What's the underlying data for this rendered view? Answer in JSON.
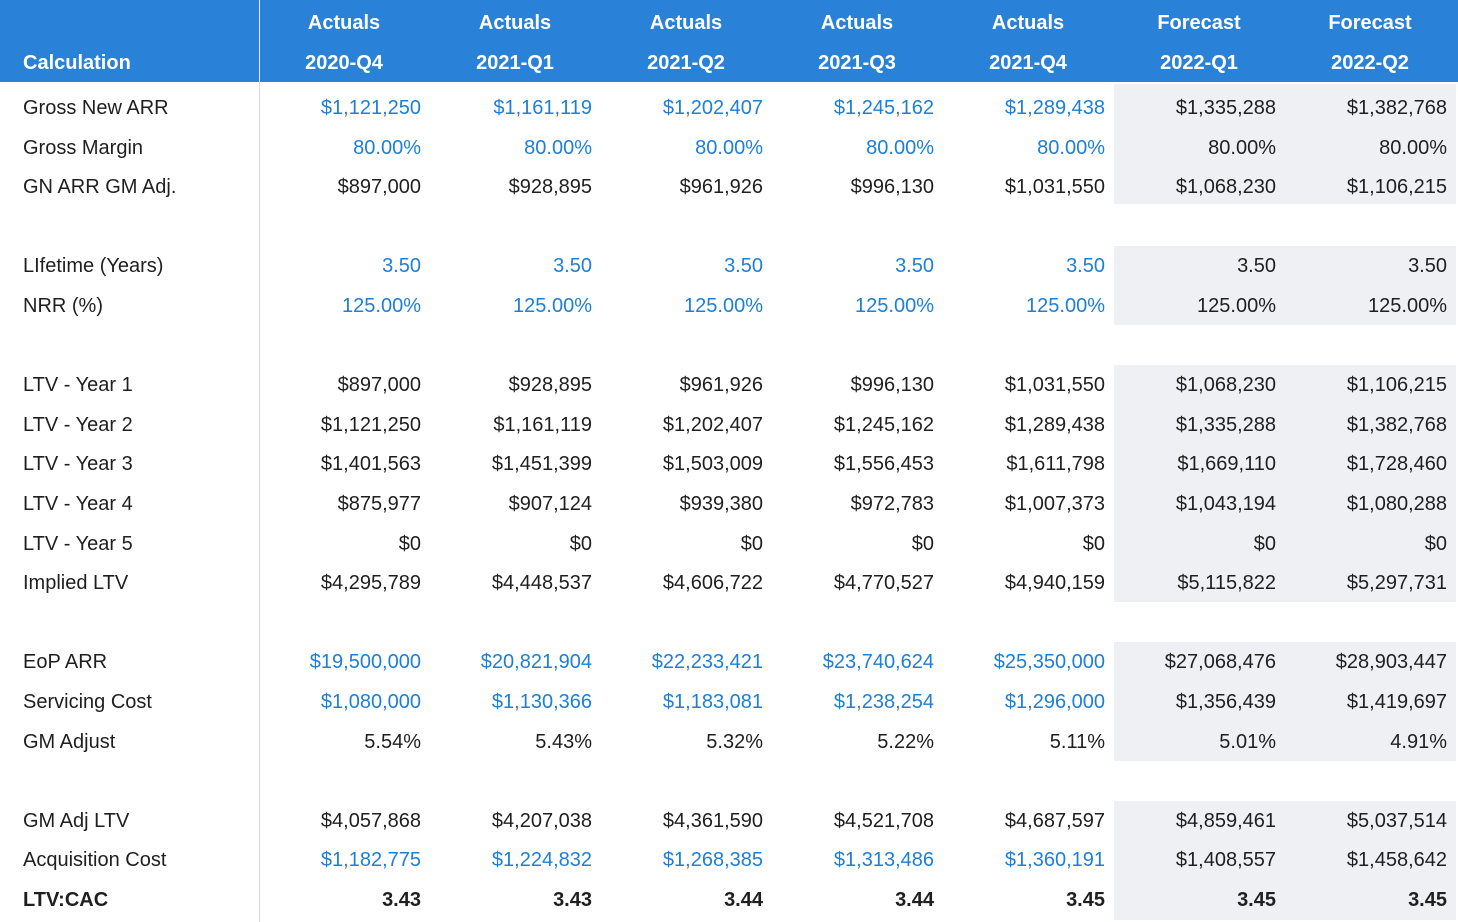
{
  "colors": {
    "header_bg": "#2a82d8",
    "input_blue": "#1c7fd9",
    "forecast_bg": "#eef0f3"
  },
  "header": {
    "label": "Calculation",
    "columns": [
      {
        "type": "Actuals",
        "period": "2020-Q4"
      },
      {
        "type": "Actuals",
        "period": "2021-Q1"
      },
      {
        "type": "Actuals",
        "period": "2021-Q2"
      },
      {
        "type": "Actuals",
        "period": "2021-Q3"
      },
      {
        "type": "Actuals",
        "period": "2021-Q4"
      },
      {
        "type": "Forecast",
        "period": "2022-Q1"
      },
      {
        "type": "Forecast",
        "period": "2022-Q2"
      }
    ]
  },
  "rows": [
    {
      "label": "Gross New ARR",
      "values": [
        "$1,121,250",
        "$1,161,119",
        "$1,202,407",
        "$1,245,162",
        "$1,289,438",
        "$1,335,288",
        "$1,382,768"
      ],
      "input": true
    },
    {
      "label": "Gross Margin",
      "values": [
        "80.00%",
        "80.00%",
        "80.00%",
        "80.00%",
        "80.00%",
        "80.00%",
        "80.00%"
      ],
      "input": true
    },
    {
      "label": "GN ARR GM Adj.",
      "values": [
        "$897,000",
        "$928,895",
        "$961,926",
        "$996,130",
        "$1,031,550",
        "$1,068,230",
        "$1,106,215"
      ]
    },
    {
      "label": "LIfetime (Years)",
      "values": [
        "3.50",
        "3.50",
        "3.50",
        "3.50",
        "3.50",
        "3.50",
        "3.50"
      ],
      "input": true
    },
    {
      "label": "NRR (%)",
      "values": [
        "125.00%",
        "125.00%",
        "125.00%",
        "125.00%",
        "125.00%",
        "125.00%",
        "125.00%"
      ],
      "input": true
    },
    {
      "label": "LTV - Year 1",
      "values": [
        "$897,000",
        "$928,895",
        "$961,926",
        "$996,130",
        "$1,031,550",
        "$1,068,230",
        "$1,106,215"
      ]
    },
    {
      "label": "LTV - Year 2",
      "values": [
        "$1,121,250",
        "$1,161,119",
        "$1,202,407",
        "$1,245,162",
        "$1,289,438",
        "$1,335,288",
        "$1,382,768"
      ]
    },
    {
      "label": "LTV - Year 3",
      "values": [
        "$1,401,563",
        "$1,451,399",
        "$1,503,009",
        "$1,556,453",
        "$1,611,798",
        "$1,669,110",
        "$1,728,460"
      ]
    },
    {
      "label": "LTV - Year 4",
      "values": [
        "$875,977",
        "$907,124",
        "$939,380",
        "$972,783",
        "$1,007,373",
        "$1,043,194",
        "$1,080,288"
      ]
    },
    {
      "label": "LTV - Year 5",
      "values": [
        "$0",
        "$0",
        "$0",
        "$0",
        "$0",
        "$0",
        "$0"
      ]
    },
    {
      "label": "Implied LTV",
      "values": [
        "$4,295,789",
        "$4,448,537",
        "$4,606,722",
        "$4,770,527",
        "$4,940,159",
        "$5,115,822",
        "$5,297,731"
      ]
    },
    {
      "label": "EoP ARR",
      "values": [
        "$19,500,000",
        "$20,821,904",
        "$22,233,421",
        "$23,740,624",
        "$25,350,000",
        "$27,068,476",
        "$28,903,447"
      ],
      "input": true
    },
    {
      "label": "Servicing Cost",
      "values": [
        "$1,080,000",
        "$1,130,366",
        "$1,183,081",
        "$1,238,254",
        "$1,296,000",
        "$1,356,439",
        "$1,419,697"
      ],
      "input": true
    },
    {
      "label": "GM Adjust",
      "values": [
        "5.54%",
        "5.43%",
        "5.32%",
        "5.22%",
        "5.11%",
        "5.01%",
        "4.91%"
      ]
    },
    {
      "label": "GM Adj LTV",
      "values": [
        "$4,057,868",
        "$4,207,038",
        "$4,361,590",
        "$4,521,708",
        "$4,687,597",
        "$4,859,461",
        "$5,037,514"
      ]
    },
    {
      "label": "Acquisition Cost",
      "values": [
        "$1,182,775",
        "$1,224,832",
        "$1,268,385",
        "$1,313,486",
        "$1,360,191",
        "$1,408,557",
        "$1,458,642"
      ],
      "input": true
    },
    {
      "label": "LTV:CAC",
      "values": [
        "3.43",
        "3.43",
        "3.44",
        "3.44",
        "3.45",
        "3.45",
        "3.45"
      ],
      "bold": true
    }
  ]
}
